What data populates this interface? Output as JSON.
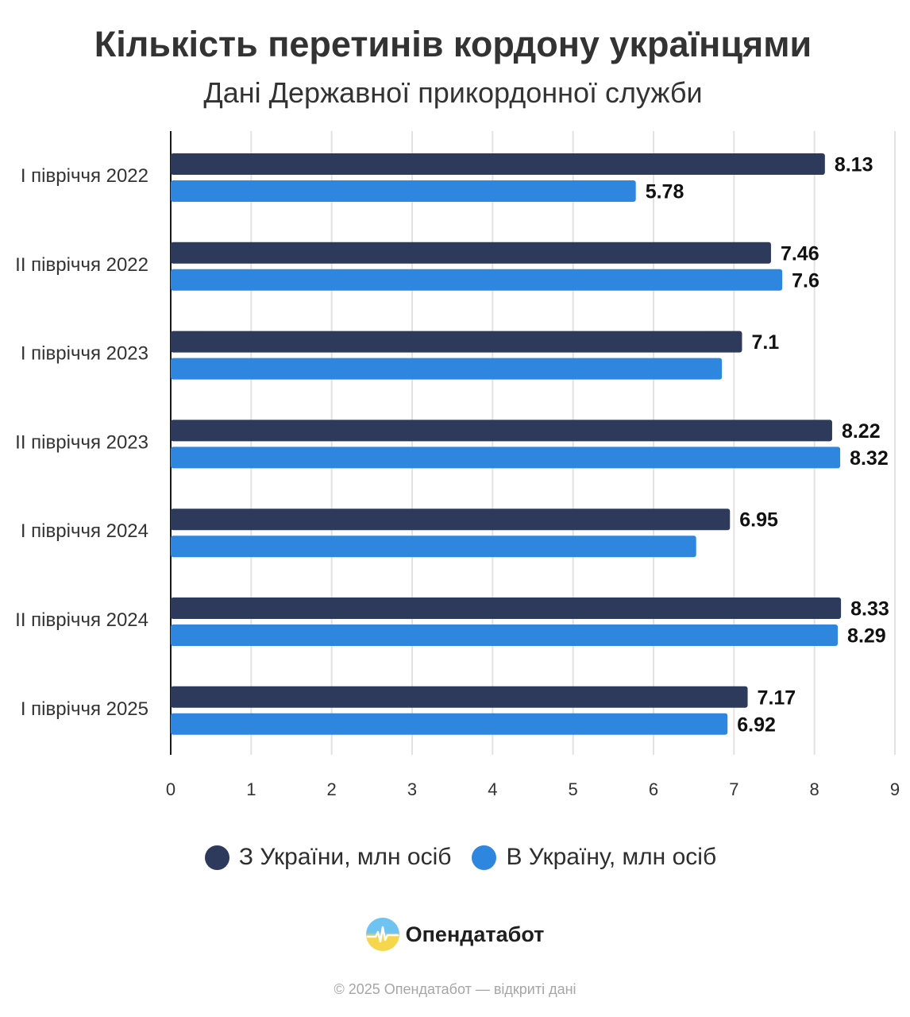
{
  "header": {
    "title": "Кількість перетинів кордону українцями",
    "subtitle": "Дані Державної прикордонної служби"
  },
  "chart_data": {
    "type": "bar",
    "orientation": "horizontal",
    "title": "Кількість перетинів кордону українцями",
    "subtitle": "Дані Державної прикордонної служби",
    "categories": [
      "I півріччя 2022",
      "II півріччя 2022",
      "I півріччя 2023",
      "II півріччя 2023",
      "I півріччя 2024",
      "II півріччя 2024",
      "I півріччя 2025"
    ],
    "series": [
      {
        "name": "З України, млн осіб",
        "color": "#2d3a5b",
        "values": [
          8.13,
          7.46,
          7.1,
          8.22,
          6.95,
          8.33,
          7.17
        ],
        "labels": [
          "8.13",
          "7.46",
          "7.1",
          "8.22",
          "6.95",
          "8.33",
          "7.17"
        ]
      },
      {
        "name": "В Україну, млн осіб",
        "color": "#2e86de",
        "values": [
          5.78,
          7.6,
          6.85,
          8.32,
          6.53,
          8.29,
          6.92
        ],
        "labels": [
          "5.78",
          "7.6",
          "",
          "8.32",
          "",
          "8.29",
          "6.92"
        ]
      }
    ],
    "xlim": [
      0,
      9
    ],
    "xticks": [
      "0",
      "1",
      "2",
      "3",
      "4",
      "5",
      "6",
      "7",
      "8",
      "9"
    ],
    "grid": true,
    "legend_position": "bottom"
  },
  "branding": {
    "logo_text": "Опендатабот",
    "footer": "© 2025 Опендатабот — відкриті дані"
  }
}
